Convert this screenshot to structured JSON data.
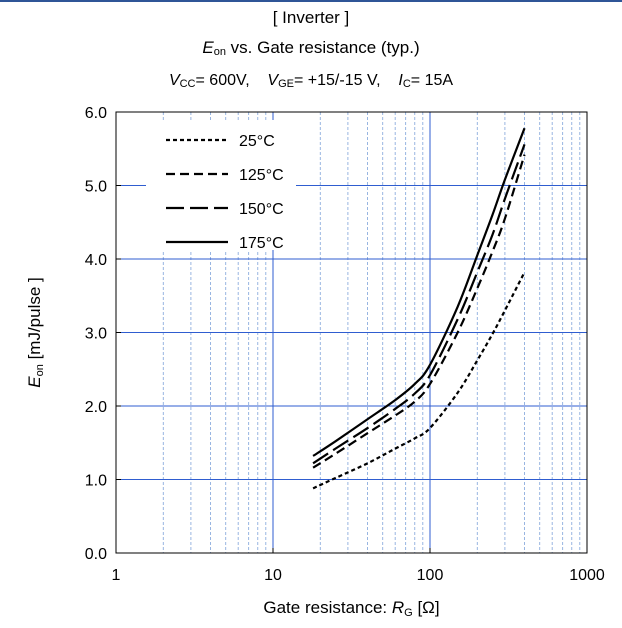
{
  "header": {
    "title": "[ Inverter ]",
    "subtitle_symbol": "E",
    "subtitle_symbol_sub": "on",
    "subtitle_rest": " vs.  Gate resistance  (typ.)",
    "conditions": [
      {
        "sym": "V",
        "sub": "CC",
        "text": "= 600V,"
      },
      {
        "sym": "V",
        "sub": "GE",
        "text": "= +15/-15 V,"
      },
      {
        "sym": "I",
        "sub": "C",
        "text": "= 15A"
      }
    ]
  },
  "chart_data": {
    "type": "line",
    "xscale": "log",
    "xlim": [
      1,
      1000
    ],
    "ylim": [
      0,
      6
    ],
    "xticks": [
      1,
      10,
      100,
      1000
    ],
    "xtick_labels": [
      "1",
      "10",
      "100",
      "1000"
    ],
    "yticks": [
      0,
      1,
      2,
      3,
      4,
      5,
      6
    ],
    "ytick_labels": [
      "0.0",
      "1.0",
      "2.0",
      "3.0",
      "4.0",
      "5.0",
      "6.0"
    ],
    "xlabel": "Gate resistance: ",
    "xlabel_symbol": "R",
    "xlabel_sub": "G",
    "xlabel_unit": " [Ω]",
    "ylabel_symbol": "E",
    "ylabel_sub": "on",
    "ylabel_unit": " [mJ/pulse ]",
    "grid": true,
    "legend_position": "top-left",
    "series": [
      {
        "name": "25°C",
        "dash": "dotted-short",
        "x": [
          18,
          25,
          40,
          60,
          80,
          100,
          150,
          200,
          250,
          300,
          400
        ],
        "y": [
          0.88,
          1.02,
          1.22,
          1.42,
          1.56,
          1.7,
          2.18,
          2.62,
          2.98,
          3.3,
          3.82
        ]
      },
      {
        "name": "125°C",
        "dash": "short",
        "x": [
          18,
          25,
          40,
          60,
          80,
          100,
          150,
          200,
          250,
          300,
          400
        ],
        "y": [
          1.16,
          1.35,
          1.63,
          1.87,
          2.06,
          2.3,
          3.0,
          3.6,
          4.1,
          4.55,
          5.42
        ]
      },
      {
        "name": "150°C",
        "dash": "long",
        "x": [
          18,
          25,
          40,
          60,
          80,
          100,
          150,
          200,
          250,
          300,
          400
        ],
        "y": [
          1.22,
          1.42,
          1.7,
          1.96,
          2.17,
          2.42,
          3.18,
          3.82,
          4.33,
          4.82,
          5.56
        ]
      },
      {
        "name": "175°C",
        "dash": "solid",
        "x": [
          18,
          25,
          40,
          60,
          80,
          100,
          150,
          200,
          250,
          300,
          400
        ],
        "y": [
          1.32,
          1.52,
          1.82,
          2.08,
          2.3,
          2.56,
          3.35,
          4.05,
          4.6,
          5.08,
          5.78
        ]
      }
    ]
  }
}
